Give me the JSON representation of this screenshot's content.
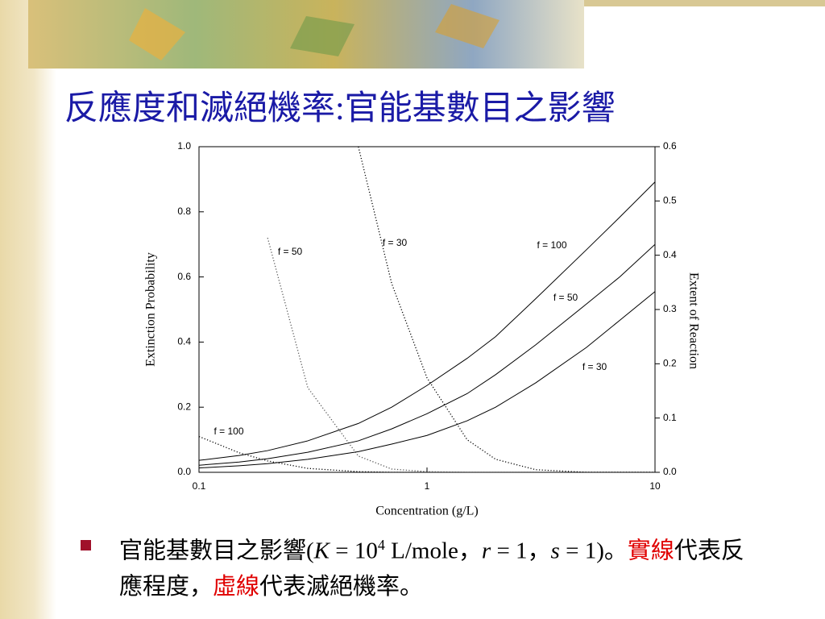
{
  "header": {
    "title": "反應度和滅絕機率:官能基數目之影響"
  },
  "chart_data": {
    "type": "line",
    "xscale": "log",
    "xlabel": "Concentration (g/L)",
    "ylabel": "Extinction Probability",
    "y2label": "Extent of Reaction",
    "x": [
      0.1,
      0.15,
      0.2,
      0.3,
      0.5,
      0.7,
      1,
      1.5,
      2,
      3,
      5,
      7,
      10
    ],
    "xlim": [
      0.1,
      10
    ],
    "xticks": [
      0.1,
      1,
      10
    ],
    "ylim": [
      0,
      1
    ],
    "yticks": [
      {
        "value": 0,
        "label": "0.0"
      },
      0.2,
      0.4,
      0.6,
      0.8,
      {
        "value": 1,
        "label": "1.0"
      }
    ],
    "y2lim": [
      0,
      0.6
    ],
    "y2ticks": [
      {
        "value": 0,
        "label": "0.0"
      },
      0.1,
      0.2,
      0.3,
      0.4,
      0.5,
      0.6
    ],
    "series": [
      {
        "name": "f = 100",
        "color": "#000000",
        "style": "dotted",
        "values": [
          0.11,
          0.06,
          0.035,
          0.012,
          0.002,
          0,
          0,
          0,
          0,
          0,
          0,
          0,
          0
        ]
      },
      {
        "name": "f = 50",
        "color": "#555555",
        "style": "dotted",
        "values": [
          null,
          null,
          0.72,
          0.26,
          0.05,
          0.01,
          0.002,
          0,
          0,
          0,
          0,
          0,
          0
        ]
      },
      {
        "name": "f = 30",
        "color": "#000000",
        "style": "dotted",
        "values": [
          null,
          null,
          null,
          null,
          1,
          0.58,
          0.29,
          0.1,
          0.04,
          0.008,
          0,
          0,
          0
        ]
      },
      {
        "name": "f = 100",
        "color": "#000000",
        "style": "solid",
        "axis": "y2",
        "values": [
          0.022,
          0.031,
          0.04,
          0.058,
          0.09,
          0.12,
          0.16,
          0.21,
          0.25,
          0.32,
          0.41,
          0.47,
          0.535
        ]
      },
      {
        "name": "f = 50",
        "color": "#000000",
        "style": "solid",
        "axis": "y2",
        "values": [
          0.013,
          0.019,
          0.025,
          0.037,
          0.058,
          0.08,
          0.108,
          0.145,
          0.18,
          0.235,
          0.31,
          0.36,
          0.42
        ]
      },
      {
        "name": "f = 30",
        "color": "#000000",
        "style": "solid",
        "axis": "y2",
        "values": [
          0.008,
          0.012,
          0.016,
          0.024,
          0.038,
          0.052,
          0.068,
          0.095,
          0.12,
          0.165,
          0.23,
          0.28,
          0.333
        ]
      }
    ]
  },
  "bullet": {
    "parts": [
      "官能基數目之影響(",
      "K",
      " = 10",
      "4",
      " L/mole，",
      "r",
      " = 1，",
      "s",
      " = 1)。",
      "實線",
      "代表反應程度，",
      "虛線",
      "代表滅絕機率。"
    ]
  }
}
